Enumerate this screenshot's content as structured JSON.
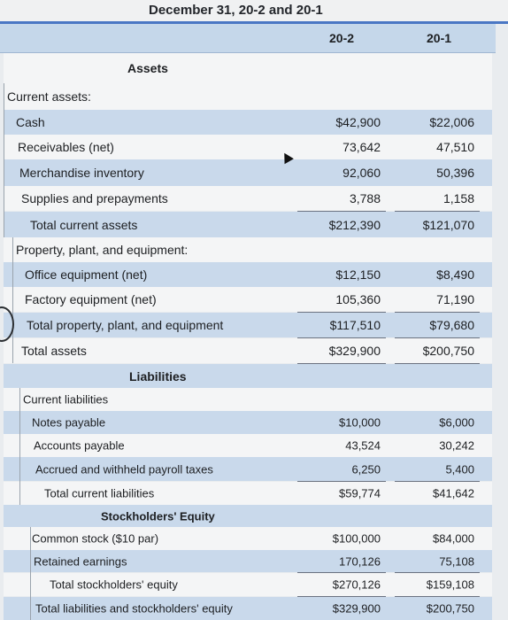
{
  "header": {
    "title": "December 31, 20-2 and 20-1",
    "col1": "20-2",
    "col2": "20-1"
  },
  "assets": {
    "heading": "Assets",
    "current_label": "Current assets:",
    "rows": [
      {
        "label": "Cash",
        "v1": "$42,900",
        "v2": "$22,006"
      },
      {
        "label": "Receivables (net)",
        "v1": "73,642",
        "v2": "47,510"
      },
      {
        "label": "Merchandise inventory",
        "v1": "92,060",
        "v2": "50,396"
      },
      {
        "label": "Supplies and prepayments",
        "v1": "3,788",
        "v2": "1,158"
      },
      {
        "label": "Total current assets",
        "v1": "$212,390",
        "v2": "$121,070"
      }
    ],
    "ppe_label": "Property, plant, and equipment:",
    "ppe_rows": [
      {
        "label": "Office equipment (net)",
        "v1": "$12,150",
        "v2": "$8,490"
      },
      {
        "label": "Factory equipment (net)",
        "v1": "105,360",
        "v2": "71,190"
      },
      {
        "label": "Total property, plant, and equipment",
        "v1": "$117,510",
        "v2": "$79,680"
      }
    ],
    "total": {
      "label": "Total assets",
      "v1": "$329,900",
      "v2": "$200,750"
    }
  },
  "liabilities": {
    "heading": "Liabilities",
    "current_label": "Current liabilities",
    "rows": [
      {
        "label": "Notes payable",
        "v1": "$10,000",
        "v2": "$6,000"
      },
      {
        "label": "Accounts payable",
        "v1": "43,524",
        "v2": "30,242"
      },
      {
        "label": "Accrued and withheld payroll taxes",
        "v1": "6,250",
        "v2": "5,400"
      },
      {
        "label": "Total current liabilities",
        "v1": "$59,774",
        "v2": "$41,642"
      }
    ]
  },
  "equity": {
    "heading": "Stockholders' Equity",
    "rows": [
      {
        "label": "Common stock ($10 par)",
        "v1": "$100,000",
        "v2": "$84,000"
      },
      {
        "label": "Retained earnings",
        "v1": "170,126",
        "v2": "75,108"
      },
      {
        "label": "Total stockholders' equity",
        "v1": "$270,126",
        "v2": "$159,108"
      },
      {
        "label": "Total liabilities and stockholders' equity",
        "v1": "$329,900",
        "v2": "$200,750"
      }
    ]
  }
}
